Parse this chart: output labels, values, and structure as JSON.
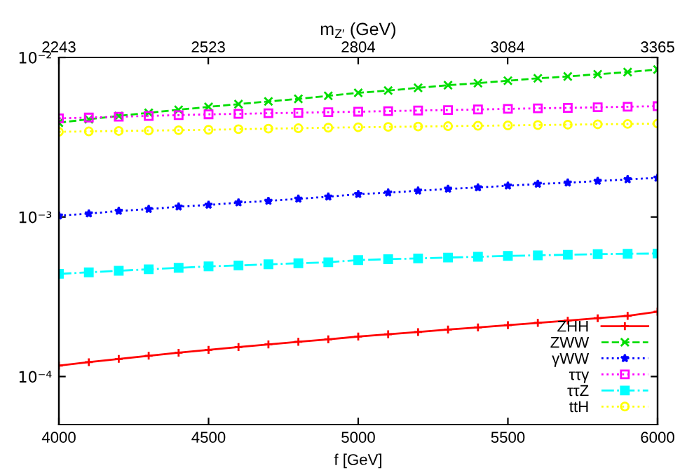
{
  "chart_data": {
    "type": "line",
    "xlabel": "f [GeV]",
    "x2label": "m$_{Z′}$ (GeV)",
    "x": [
      4000,
      4100,
      4200,
      4300,
      4400,
      4500,
      4600,
      4700,
      4800,
      4900,
      5000,
      5100,
      5200,
      5300,
      5400,
      5500,
      5600,
      5700,
      5800,
      5900,
      6000
    ],
    "series": [
      {
        "name": "ZHH",
        "color": "#ff0000",
        "marker": "plus",
        "line_style": "solid",
        "values": [
          0.000117,
          0.000123,
          0.000129,
          0.000135,
          0.000141,
          0.000147,
          0.000153,
          0.000159,
          0.000165,
          0.000171,
          0.000178,
          0.000184,
          0.00019,
          0.000197,
          0.000203,
          0.00021,
          0.000217,
          0.000224,
          0.000232,
          0.00024,
          0.000255
        ]
      },
      {
        "name": "ZWW",
        "color": "#00dd00",
        "marker": "cross",
        "line_style": "dashed",
        "values": [
          0.0039,
          0.0041,
          0.0043,
          0.0045,
          0.0047,
          0.0049,
          0.0051,
          0.0053,
          0.0055,
          0.00575,
          0.006,
          0.0062,
          0.00645,
          0.0067,
          0.0069,
          0.00715,
          0.0074,
          0.0076,
          0.00785,
          0.0081,
          0.0084
        ]
      },
      {
        "name": "γWW",
        "color": "#0000ff",
        "marker": "star",
        "line_style": "dotted",
        "values": [
          0.00102,
          0.00105,
          0.00109,
          0.00112,
          0.00116,
          0.00119,
          0.00123,
          0.00126,
          0.0013,
          0.00134,
          0.00139,
          0.00142,
          0.00146,
          0.0015,
          0.00153,
          0.00157,
          0.00161,
          0.00164,
          0.00168,
          0.00172,
          0.00176
        ]
      },
      {
        "name": "ττγ",
        "color": "#ff00ff",
        "marker": "square",
        "line_style": "dotted",
        "values": [
          0.00415,
          0.0042,
          0.00425,
          0.0043,
          0.00435,
          0.0044,
          0.00443,
          0.00447,
          0.0045,
          0.00454,
          0.00457,
          0.00461,
          0.00465,
          0.00468,
          0.00472,
          0.00476,
          0.0048,
          0.00483,
          0.00487,
          0.00491,
          0.00495
        ]
      },
      {
        "name": "ττZ",
        "color": "#00ffff",
        "marker": "square",
        "line_style": "dashdot",
        "values": [
          0.00044,
          0.00045,
          0.00046,
          0.00047,
          0.00048,
          0.00049,
          0.000497,
          0.000505,
          0.000513,
          0.00052,
          0.000537,
          0.000544,
          0.00055,
          0.000557,
          0.000563,
          0.00057,
          0.000575,
          0.00058,
          0.000585,
          0.000588,
          0.00059
        ]
      },
      {
        "name": "ttH",
        "color": "#ffff00",
        "marker": "circle",
        "line_style": "dotted",
        "values": [
          0.00342,
          0.00344,
          0.00346,
          0.00348,
          0.0035,
          0.00352,
          0.00355,
          0.00358,
          0.0036,
          0.00363,
          0.00365,
          0.00367,
          0.00369,
          0.00371,
          0.00373,
          0.00375,
          0.00377,
          0.00379,
          0.00381,
          0.00383,
          0.00385
        ]
      }
    ],
    "log": "y",
    "xlim": [
      4000,
      6000
    ],
    "xticks": [
      4000,
      4500,
      5000,
      5500,
      6000
    ],
    "x2lim": [
      2243,
      3365
    ],
    "x2ticks": [
      2243,
      2523,
      2804,
      3084,
      3365
    ],
    "ylim": [
      5e-05,
      0.01
    ],
    "yticks": [
      {
        "value": 0.0001,
        "label": "10⁻⁴"
      },
      {
        "value": 0.001,
        "label": "10⁻³"
      },
      {
        "value": 0.01,
        "label": "10⁻²"
      }
    ],
    "grid": false,
    "legend": "bottom right"
  }
}
